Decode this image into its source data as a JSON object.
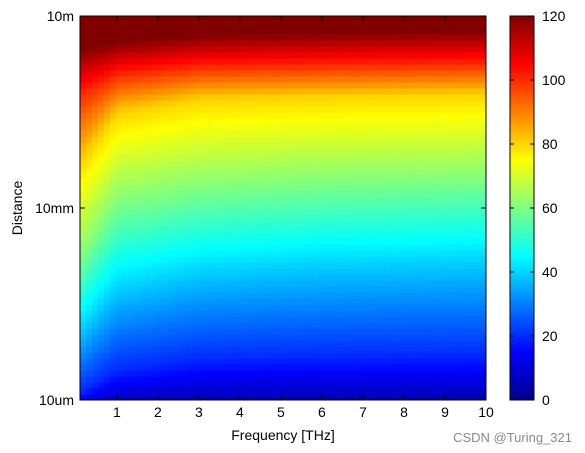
{
  "chart_data": {
    "type": "heatmap",
    "xlabel": "Frequency [THz]",
    "ylabel": "Distance",
    "x_ticks": [
      1,
      2,
      3,
      4,
      5,
      6,
      7,
      8,
      9,
      10
    ],
    "xlim": [
      0.1,
      10
    ],
    "y_scale": "log",
    "y_ticks": [
      {
        "label": "10um",
        "value": 1e-05
      },
      {
        "label": "10mm",
        "value": 0.01
      },
      {
        "label": "10m",
        "value": 10
      }
    ],
    "ylim": [
      1e-05,
      10
    ],
    "colorbar": {
      "range": [
        0,
        120
      ],
      "ticks": [
        0,
        20,
        40,
        60,
        80,
        100,
        120
      ],
      "colormap": "jet"
    },
    "contour_estimates": [
      {
        "level": 20,
        "distance_at_freq": [
          [
            0.1,
            1.3e-05
          ],
          [
            1,
            3e-05
          ],
          [
            3,
            4.5e-05
          ],
          [
            6,
            5e-05
          ],
          [
            10,
            5.3e-05
          ]
        ]
      },
      {
        "level": 40,
        "distance_at_freq": [
          [
            0.1,
            0.00013
          ],
          [
            1,
            0.0006
          ],
          [
            3,
            0.0011
          ],
          [
            6,
            0.0014
          ],
          [
            10,
            0.0016
          ]
        ]
      },
      {
        "level": 60,
        "distance_at_freq": [
          [
            0.1,
            0.0016
          ],
          [
            1,
            0.012
          ],
          [
            3,
            0.02
          ],
          [
            6,
            0.025
          ],
          [
            10,
            0.028
          ]
        ]
      },
      {
        "level": 80,
        "distance_at_freq": [
          [
            0.1,
            0.05
          ],
          [
            1,
            0.3
          ],
          [
            3,
            0.5
          ],
          [
            6,
            0.55
          ],
          [
            10,
            0.6
          ]
        ]
      },
      {
        "level": 100,
        "distance_at_freq": [
          [
            0.1,
            0.6
          ],
          [
            1,
            1.2
          ],
          [
            3,
            1.6
          ],
          [
            6,
            1.7
          ],
          [
            10,
            1.8
          ]
        ]
      },
      {
        "level": 120,
        "distance_at_freq": [
          [
            0.1,
            3
          ],
          [
            1,
            4
          ],
          [
            3,
            5
          ],
          [
            6,
            5.5
          ],
          [
            10,
            6
          ]
        ]
      }
    ]
  },
  "watermark": "CSDN @Turing_321"
}
